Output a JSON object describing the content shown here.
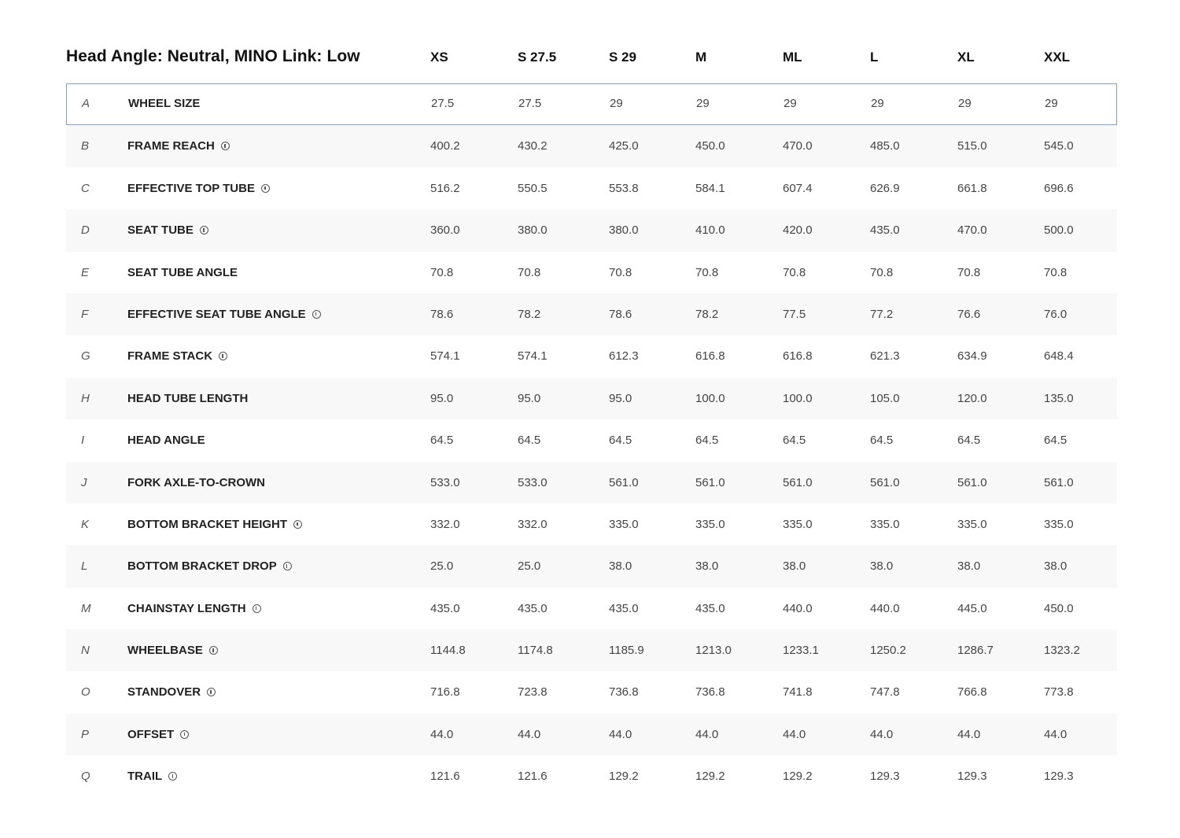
{
  "table": {
    "title": "Head Angle: Neutral, MINO Link: Low",
    "sizes": [
      "XS",
      "S 27.5",
      "S 29",
      "M",
      "ML",
      "L",
      "XL",
      "XXL"
    ],
    "rows": [
      {
        "letter": "A",
        "label": "WHEEL SIZE",
        "info": false,
        "values": [
          "27.5",
          "27.5",
          "29",
          "29",
          "29",
          "29",
          "29",
          "29"
        ]
      },
      {
        "letter": "B",
        "label": "FRAME REACH",
        "info": true,
        "values": [
          "400.2",
          "430.2",
          "425.0",
          "450.0",
          "470.0",
          "485.0",
          "515.0",
          "545.0"
        ]
      },
      {
        "letter": "C",
        "label": "EFFECTIVE TOP TUBE",
        "info": true,
        "values": [
          "516.2",
          "550.5",
          "553.8",
          "584.1",
          "607.4",
          "626.9",
          "661.8",
          "696.6"
        ]
      },
      {
        "letter": "D",
        "label": "SEAT TUBE",
        "info": true,
        "values": [
          "360.0",
          "380.0",
          "380.0",
          "410.0",
          "420.0",
          "435.0",
          "470.0",
          "500.0"
        ]
      },
      {
        "letter": "E",
        "label": "SEAT TUBE ANGLE",
        "info": false,
        "values": [
          "70.8",
          "70.8",
          "70.8",
          "70.8",
          "70.8",
          "70.8",
          "70.8",
          "70.8"
        ]
      },
      {
        "letter": "F",
        "label": "EFFECTIVE SEAT TUBE ANGLE",
        "info": true,
        "values": [
          "78.6",
          "78.2",
          "78.6",
          "78.2",
          "77.5",
          "77.2",
          "76.6",
          "76.0"
        ]
      },
      {
        "letter": "G",
        "label": "FRAME STACK",
        "info": true,
        "values": [
          "574.1",
          "574.1",
          "612.3",
          "616.8",
          "616.8",
          "621.3",
          "634.9",
          "648.4"
        ]
      },
      {
        "letter": "H",
        "label": "HEAD TUBE LENGTH",
        "info": false,
        "values": [
          "95.0",
          "95.0",
          "95.0",
          "100.0",
          "100.0",
          "105.0",
          "120.0",
          "135.0"
        ]
      },
      {
        "letter": "I",
        "label": "HEAD ANGLE",
        "info": false,
        "values": [
          "64.5",
          "64.5",
          "64.5",
          "64.5",
          "64.5",
          "64.5",
          "64.5",
          "64.5"
        ]
      },
      {
        "letter": "J",
        "label": "FORK AXLE-TO-CROWN",
        "info": false,
        "values": [
          "533.0",
          "533.0",
          "561.0",
          "561.0",
          "561.0",
          "561.0",
          "561.0",
          "561.0"
        ]
      },
      {
        "letter": "K",
        "label": "BOTTOM BRACKET HEIGHT",
        "info": true,
        "values": [
          "332.0",
          "332.0",
          "335.0",
          "335.0",
          "335.0",
          "335.0",
          "335.0",
          "335.0"
        ]
      },
      {
        "letter": "L",
        "label": "BOTTOM BRACKET DROP",
        "info": true,
        "values": [
          "25.0",
          "25.0",
          "38.0",
          "38.0",
          "38.0",
          "38.0",
          "38.0",
          "38.0"
        ]
      },
      {
        "letter": "M",
        "label": "CHAINSTAY LENGTH",
        "info": true,
        "values": [
          "435.0",
          "435.0",
          "435.0",
          "435.0",
          "440.0",
          "440.0",
          "445.0",
          "450.0"
        ]
      },
      {
        "letter": "N",
        "label": "WHEELBASE",
        "info": true,
        "values": [
          "1144.8",
          "1174.8",
          "1185.9",
          "1213.0",
          "1233.1",
          "1250.2",
          "1286.7",
          "1323.2"
        ]
      },
      {
        "letter": "O",
        "label": "STANDOVER",
        "info": true,
        "values": [
          "716.8",
          "723.8",
          "736.8",
          "736.8",
          "741.8",
          "747.8",
          "766.8",
          "773.8"
        ]
      },
      {
        "letter": "P",
        "label": "OFFSET",
        "info": true,
        "values": [
          "44.0",
          "44.0",
          "44.0",
          "44.0",
          "44.0",
          "44.0",
          "44.0",
          "44.0"
        ]
      },
      {
        "letter": "Q",
        "label": "TRAIL",
        "info": true,
        "values": [
          "121.6",
          "121.6",
          "129.2",
          "129.2",
          "129.2",
          "129.3",
          "129.3",
          "129.3"
        ]
      }
    ],
    "selected_row": "A",
    "colors": {
      "selected_border": "#7fa3c7",
      "alt_row_bg": "#f8f8f8"
    },
    "icons": {
      "info": "info-circle-icon"
    }
  }
}
